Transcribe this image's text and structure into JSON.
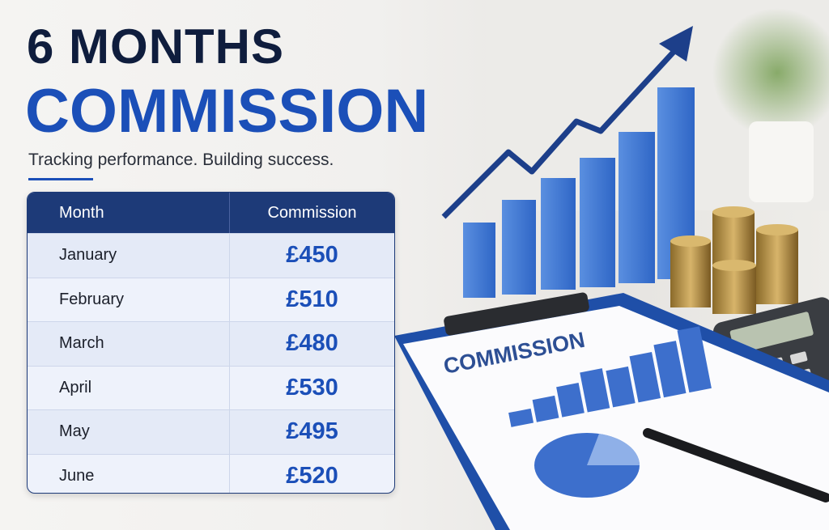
{
  "header": {
    "title_line1": "6 MONTHS",
    "title_line2": "COMMISSION",
    "subtitle": "Tracking performance. Building success."
  },
  "table": {
    "columns": [
      "Month",
      "Commission"
    ],
    "rows": [
      [
        "January",
        "£450"
      ],
      [
        "February",
        "£510"
      ],
      [
        "March",
        "£480"
      ],
      [
        "April",
        "£530"
      ],
      [
        "May",
        "£495"
      ],
      [
        "June",
        "£520"
      ]
    ]
  },
  "illustration": {
    "clipboard_title": "COMMISSION"
  }
}
